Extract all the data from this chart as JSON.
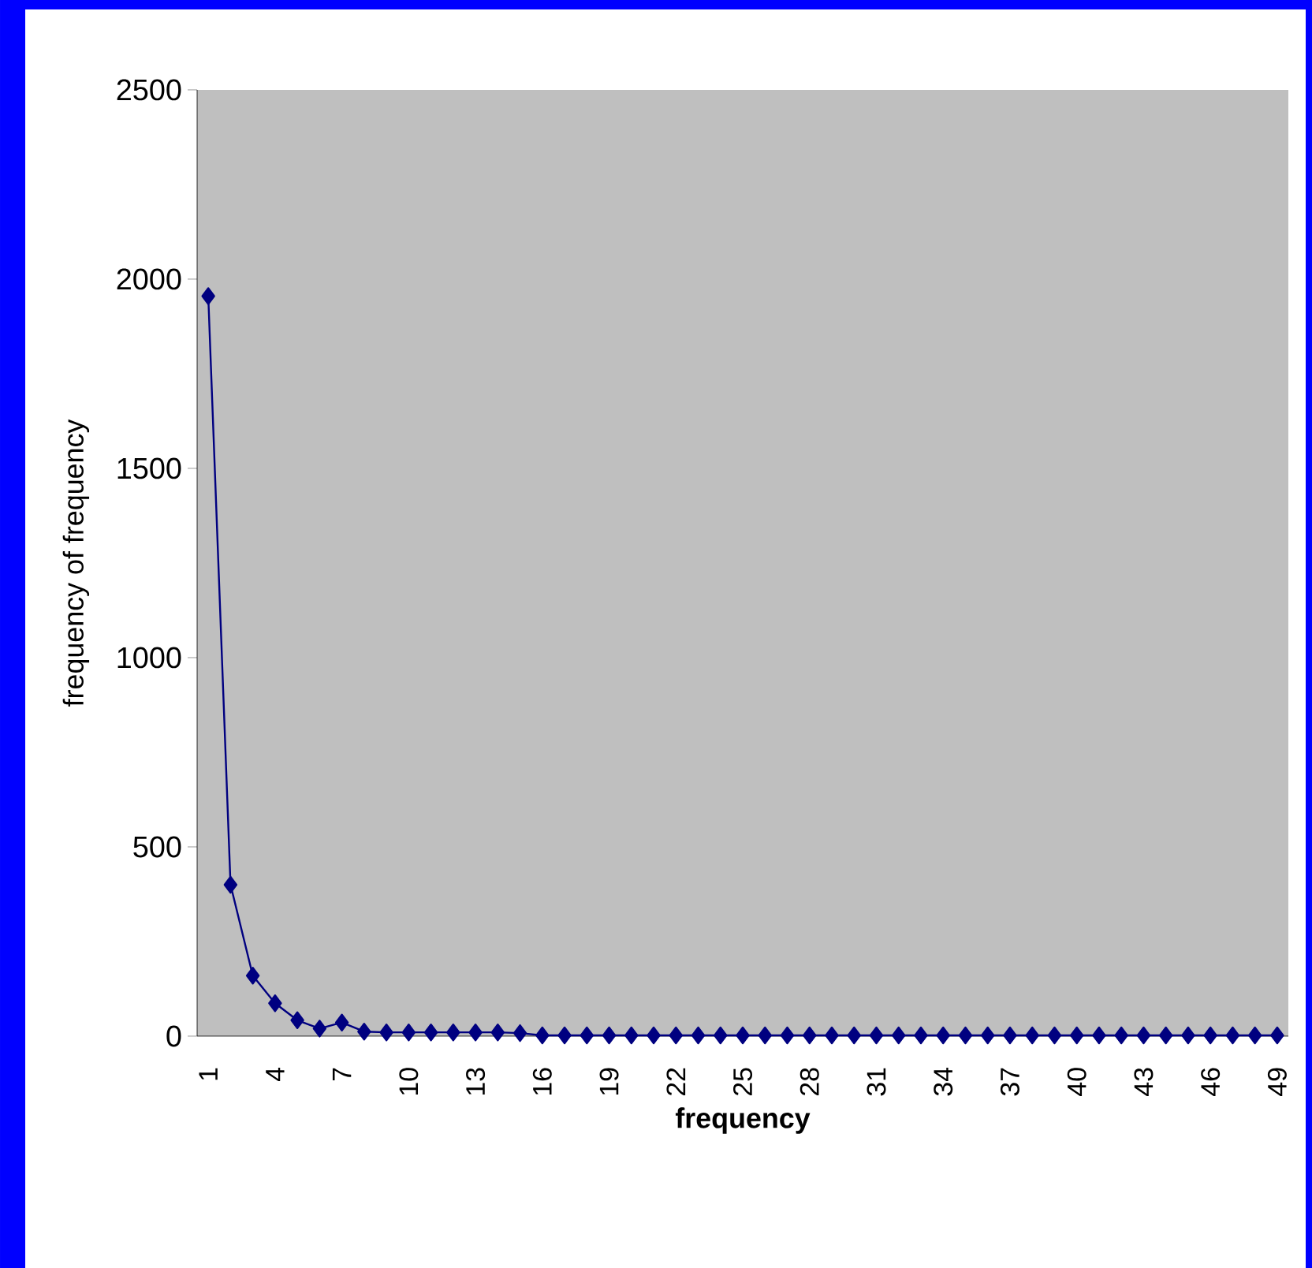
{
  "chart_data": {
    "type": "line",
    "xlabel": "frequency",
    "ylabel": "frequency of frequency",
    "categories": [
      "1",
      null,
      null,
      "4",
      null,
      null,
      "7",
      null,
      null,
      "10",
      null,
      null,
      "13",
      null,
      null,
      "16",
      null,
      null,
      "19",
      null,
      null,
      "22",
      null,
      null,
      "25",
      null,
      null,
      "28",
      null,
      null,
      "31",
      null,
      null,
      "34",
      null,
      null,
      "37",
      null,
      null,
      "40",
      null,
      null,
      "43",
      null,
      null,
      "46",
      null,
      null,
      "49"
    ],
    "values": [
      1955,
      400,
      160,
      87,
      42,
      20,
      36,
      12,
      10,
      10,
      10,
      10,
      10,
      10,
      8,
      2,
      2,
      2,
      2,
      2,
      2,
      2,
      2,
      2,
      2,
      2,
      2,
      2,
      2,
      2,
      2,
      2,
      2,
      2,
      2,
      2,
      2,
      2,
      2,
      2,
      2,
      2,
      2,
      2,
      2,
      2,
      2,
      2,
      2
    ],
    "color": "#000080",
    "marker": "diamond",
    "line_style": "solid",
    "ylim": [
      0,
      2500
    ],
    "yticks": [
      0,
      500,
      1000,
      1500,
      2000,
      2500
    ],
    "grid": false
  }
}
